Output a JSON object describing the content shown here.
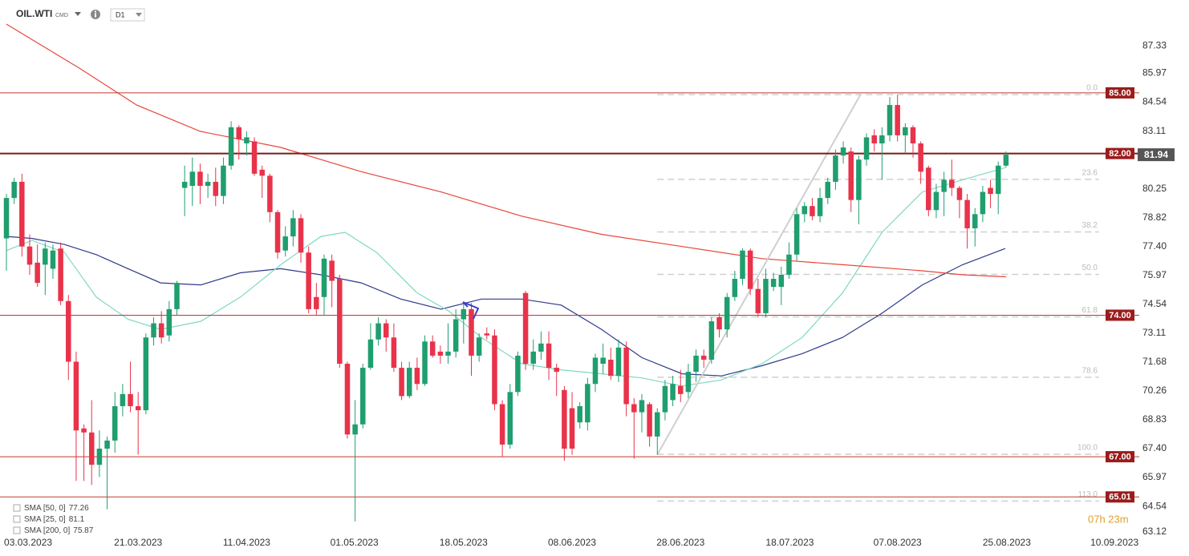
{
  "header": {
    "title": "OIL.WTI",
    "market": "CMD",
    "interval": "D1"
  },
  "countdown": "07h 23m",
  "chart_data": {
    "type": "candlestick",
    "up_color": "#1f9e6e",
    "down_color": "#e8334a",
    "open": [
      77.8,
      79.8,
      80.6,
      77.4,
      76.6,
      76.5,
      76.3,
      77.3,
      74.7,
      71.7,
      68.4,
      68.2,
      66.6,
      67.4,
      67.8,
      69.5,
      70.1,
      69.5,
      69.3,
      72.9,
      73.6,
      73.0,
      74.3,
      80.3,
      80.4,
      81.1,
      80.4,
      80.6,
      79.9,
      81.4,
      83.3,
      82.5,
      82.6,
      81.2,
      80.9,
      79.1,
      77.2,
      77.9,
      78.8,
      77.1,
      74.9,
      74.9,
      76.7,
      75.8,
      71.6,
      68.1,
      68.6,
      71.4,
      72.8,
      73.6,
      72.9,
      71.4,
      70.0,
      71.4,
      70.6,
      72.7,
      72.2,
      72.0,
      72.2,
      73.8,
      74.3,
      72.0,
      73.1,
      73.0,
      69.6,
      67.6,
      70.2,
      75.1,
      71.6,
      72.2,
      72.6,
      71.4,
      70.3,
      69.4,
      68.7,
      68.7,
      70.6,
      71.6,
      71.8,
      71.0,
      72.4,
      69.6,
      69.2,
      69.6,
      68.0,
      69.2,
      69.8,
      70.5,
      70.2,
      71.2,
      72.0,
      71.8,
      73.9,
      73.3,
      74.9,
      75.8,
      77.2,
      75.3,
      74.1,
      75.4,
      75.4,
      76.0,
      77.0,
      79.0,
      79.4,
      78.9,
      79.8,
      80.6,
      81.9,
      82.1,
      79.7,
      81.7,
      82.9,
      82.5,
      82.9,
      84.4,
      82.9,
      83.3,
      82.5,
      81.3,
      79.2,
      80.1,
      80.7,
      80.3,
      79.7,
      78.3,
      79.0,
      80.3,
      80.0,
      81.4
    ],
    "high": [
      80.0,
      80.8,
      81.0,
      78.0,
      77.5,
      77.6,
      77.5,
      77.6,
      75.0,
      72.2,
      68.6,
      69.8,
      68.3,
      68.0,
      70.2,
      70.6,
      71.7,
      70.2,
      73.1,
      73.9,
      74.2,
      74.7,
      75.7,
      81.4,
      81.8,
      81.5,
      81.0,
      81.3,
      81.8,
      83.6,
      83.4,
      83.1,
      82.8,
      81.4,
      81.0,
      79.2,
      78.4,
      79.2,
      79.0,
      77.4,
      75.6,
      77.0,
      77.0,
      76.0,
      71.7,
      69.8,
      71.6,
      73.6,
      73.9,
      73.8,
      73.6,
      71.7,
      71.7,
      71.9,
      73.0,
      73.0,
      72.5,
      73.6,
      74.3,
      74.6,
      74.6,
      73.1,
      73.4,
      73.3,
      69.8,
      70.6,
      72.2,
      75.2,
      72.8,
      73.2,
      73.2,
      71.6,
      70.5,
      70.2,
      69.7,
      70.9,
      72.1,
      72.6,
      72.4,
      72.8,
      72.7,
      69.9,
      70.1,
      69.7,
      69.4,
      70.8,
      71.0,
      71.3,
      71.6,
      72.3,
      72.3,
      73.9,
      74.1,
      75.1,
      76.2,
      77.3,
      77.3,
      75.8,
      76.3,
      76.1,
      76.4,
      77.6,
      79.3,
      79.6,
      79.8,
      80.3,
      80.8,
      82.2,
      82.6,
      82.3,
      81.9,
      83.0,
      83.2,
      83.3,
      84.8,
      84.9,
      83.5,
      83.4,
      82.6,
      81.4,
      80.5,
      81.1,
      81.7,
      80.4,
      80.0,
      79.3,
      80.4,
      80.7,
      81.6,
      82.1
    ],
    "low": [
      76.2,
      79.5,
      76.9,
      76.0,
      75.4,
      75.0,
      75.8,
      74.5,
      70.8,
      65.8,
      65.8,
      65.6,
      66.0,
      64.4,
      67.2,
      69.0,
      69.2,
      67.1,
      69.1,
      72.5,
      72.6,
      72.7,
      74.0,
      78.9,
      79.4,
      79.5,
      79.8,
      79.4,
      79.5,
      81.2,
      81.7,
      81.9,
      80.9,
      79.8,
      78.6,
      76.8,
      76.9,
      77.4,
      76.6,
      74.1,
      74.0,
      74.0,
      74.4,
      71.4,
      67.9,
      63.8,
      68.4,
      71.3,
      72.5,
      72.2,
      71.2,
      69.8,
      69.9,
      70.3,
      70.5,
      71.9,
      71.6,
      71.6,
      71.9,
      72.6,
      71.0,
      71.7,
      72.8,
      69.3,
      67.0,
      67.4,
      70.0,
      71.3,
      71.3,
      71.8,
      70.8,
      70.0,
      66.8,
      67.1,
      68.4,
      68.3,
      70.2,
      71.1,
      70.8,
      70.7,
      69.0,
      66.9,
      68.2,
      67.5,
      67.1,
      68.8,
      69.5,
      69.7,
      69.9,
      70.7,
      71.4,
      71.6,
      72.9,
      72.9,
      74.7,
      75.5,
      75.0,
      73.9,
      73.9,
      75.2,
      74.5,
      75.8,
      76.7,
      78.6,
      78.7,
      78.6,
      79.5,
      80.2,
      81.5,
      79.1,
      78.5,
      81.4,
      82.1,
      80.7,
      82.6,
      82.6,
      82.0,
      81.8,
      80.5,
      78.9,
      78.8,
      78.9,
      79.9,
      78.8,
      77.3,
      77.4,
      78.6,
      79.3,
      79.0,
      81.3
    ],
    "close": [
      79.8,
      80.6,
      77.4,
      76.5,
      75.6,
      77.3,
      77.2,
      74.7,
      71.7,
      68.3,
      68.2,
      66.6,
      67.4,
      67.8,
      69.5,
      70.1,
      69.5,
      69.3,
      72.9,
      73.6,
      72.9,
      74.3,
      75.6,
      80.6,
      81.1,
      80.4,
      80.6,
      79.9,
      81.4,
      83.3,
      82.7,
      82.8,
      81.0,
      80.9,
      79.1,
      77.1,
      77.9,
      78.8,
      77.1,
      74.3,
      74.3,
      76.8,
      75.7,
      71.6,
      68.1,
      68.6,
      71.4,
      72.8,
      73.6,
      72.9,
      71.4,
      70.0,
      71.4,
      70.6,
      72.7,
      72.0,
      72.0,
      72.2,
      73.8,
      74.3,
      72.0,
      72.9,
      73.0,
      69.6,
      67.6,
      70.2,
      72.0,
      71.6,
      72.2,
      72.6,
      71.4,
      71.2,
      67.4,
      67.4,
      69.5,
      70.6,
      71.9,
      71.9,
      71.0,
      72.4,
      69.6,
      69.2,
      69.8,
      68.0,
      69.2,
      70.5,
      70.6,
      70.1,
      71.2,
      72.0,
      71.8,
      73.7,
      73.3,
      74.9,
      75.8,
      77.2,
      75.3,
      74.1,
      75.8,
      75.8,
      76.0,
      77.0,
      79.0,
      79.4,
      78.9,
      79.8,
      80.6,
      81.9,
      82.3,
      79.7,
      81.7,
      82.8,
      82.5,
      82.9,
      84.4,
      82.9,
      83.3,
      82.5,
      81.1,
      79.2,
      80.1,
      80.7,
      80.3,
      79.7,
      78.3,
      79.0,
      80.1,
      80.0,
      81.4,
      81.94
    ],
    "sma": [
      {
        "name": "SMA [50, 0]",
        "last": 77.26,
        "color": "#2e3a8c",
        "x": [
          0,
          3.3,
          7.5,
          11.6,
          15.7,
          19.9,
          25.1,
          30.2,
          35.4,
          40.6,
          45.8,
          50.9,
          56.1,
          61.3,
          66.5,
          71.6,
          76.8,
          82,
          87.2,
          92.3,
          97.5,
          102.7,
          107.9,
          113,
          118.2,
          123.4,
          128.9
        ],
        "values": [
          77.9,
          77.8,
          77.5,
          77.0,
          76.3,
          75.6,
          75.5,
          76.1,
          76.3,
          76.0,
          75.6,
          74.8,
          74.3,
          74.8,
          74.8,
          74.5,
          73.3,
          71.9,
          71.1,
          71.0,
          71.5,
          72.1,
          72.9,
          74.1,
          75.5,
          76.5,
          77.3
        ]
      },
      {
        "name": "SMA [25, 0]",
        "last": 81.1,
        "color": "#7fd8c0",
        "x": [
          0,
          3.3,
          7.5,
          11.6,
          15.7,
          19.9,
          25.1,
          30.2,
          35.4,
          40.6,
          43.7,
          47.8,
          53,
          57.1,
          61.3,
          66.5,
          71.6,
          76.8,
          82,
          87.2,
          92.3,
          97.5,
          102.7,
          107.9,
          113,
          118.2,
          123.4,
          128.9
        ],
        "values": [
          77.2,
          77.7,
          77.1,
          74.9,
          73.8,
          73.3,
          73.7,
          74.9,
          76.5,
          77.9,
          78.1,
          77.1,
          75.1,
          74.2,
          72.9,
          71.6,
          71.3,
          71.1,
          70.9,
          70.5,
          70.8,
          71.6,
          72.9,
          75.1,
          78.1,
          80.1,
          80.7,
          81.3
        ]
      },
      {
        "name": "SMA [200, 0]",
        "last": 75.87,
        "color": "#e8463a",
        "x": [
          0,
          9.5,
          16.8,
          25,
          35.4,
          45.8,
          56.1,
          66.5,
          76.8,
          87.2,
          97.5,
          107.9,
          118.2,
          123.4,
          129
        ],
        "values": [
          88.4,
          86.2,
          84.4,
          83.1,
          82.3,
          81.1,
          80.1,
          78.9,
          78.0,
          77.4,
          76.8,
          76.5,
          76.2,
          76.0,
          75.9
        ]
      }
    ],
    "levels": [
      {
        "value": 85,
        "label": "85.00"
      },
      {
        "value": 82,
        "label": "82.00"
      },
      {
        "value": 74,
        "label": "74.00"
      },
      {
        "value": 67,
        "label": "67.00"
      },
      65.01
    ],
    "level_colors": [
      "#c0392b",
      "#7a1a1a",
      "#c0392b",
      "#c0392b",
      "#c0392b"
    ],
    "last_price": 81.94,
    "trend": {
      "x": [
        84,
        110.2
      ],
      "values": [
        67.1,
        84.9
      ]
    },
    "fib": {
      "x": [
        84,
        141
      ],
      "levels": [
        {
          "name": "0.0",
          "value": 84.92
        },
        {
          "name": "23.6",
          "value": 80.72
        },
        {
          "name": "38.2",
          "value": 78.12
        },
        {
          "name": "50.0",
          "value": 76.02
        },
        {
          "name": "61.8",
          "value": 73.92
        },
        {
          "name": "78.6",
          "value": 70.93
        },
        {
          "name": "100.0",
          "value": 67.12
        },
        {
          "name": "113.0",
          "value": 64.81
        }
      ]
    },
    "xlim": [
      -0.83,
      146.2
    ],
    "xticks": [
      {
        "value": 2.8,
        "label": "03.03.2023"
      },
      {
        "value": 17,
        "label": "21.03.2023"
      },
      {
        "value": 31,
        "label": "11.04.2023"
      },
      {
        "value": 44.9,
        "label": "01.05.2023"
      },
      {
        "value": 59,
        "label": "18.05.2023"
      },
      {
        "value": 73,
        "label": "08.06.2023"
      },
      {
        "value": 87,
        "label": "28.06.2023"
      },
      {
        "value": 101.1,
        "label": "18.07.2023"
      },
      {
        "value": 115,
        "label": "07.08.2023"
      },
      {
        "value": 129.1,
        "label": "25.08.2023"
      },
      {
        "value": 143,
        "label": "10.09.2023"
      }
    ],
    "ylim": [
      63,
      89
    ],
    "yticks": [
      87.33,
      85.97,
      84.54,
      83.11,
      80.25,
      78.82,
      {
        "value": 77.4,
        "label": "77.40"
      },
      75.97,
      74.54,
      73.11,
      71.68,
      70.26,
      68.83,
      {
        "value": 67.4,
        "label": "67.40"
      },
      65.97,
      64.54,
      63.12
    ]
  }
}
